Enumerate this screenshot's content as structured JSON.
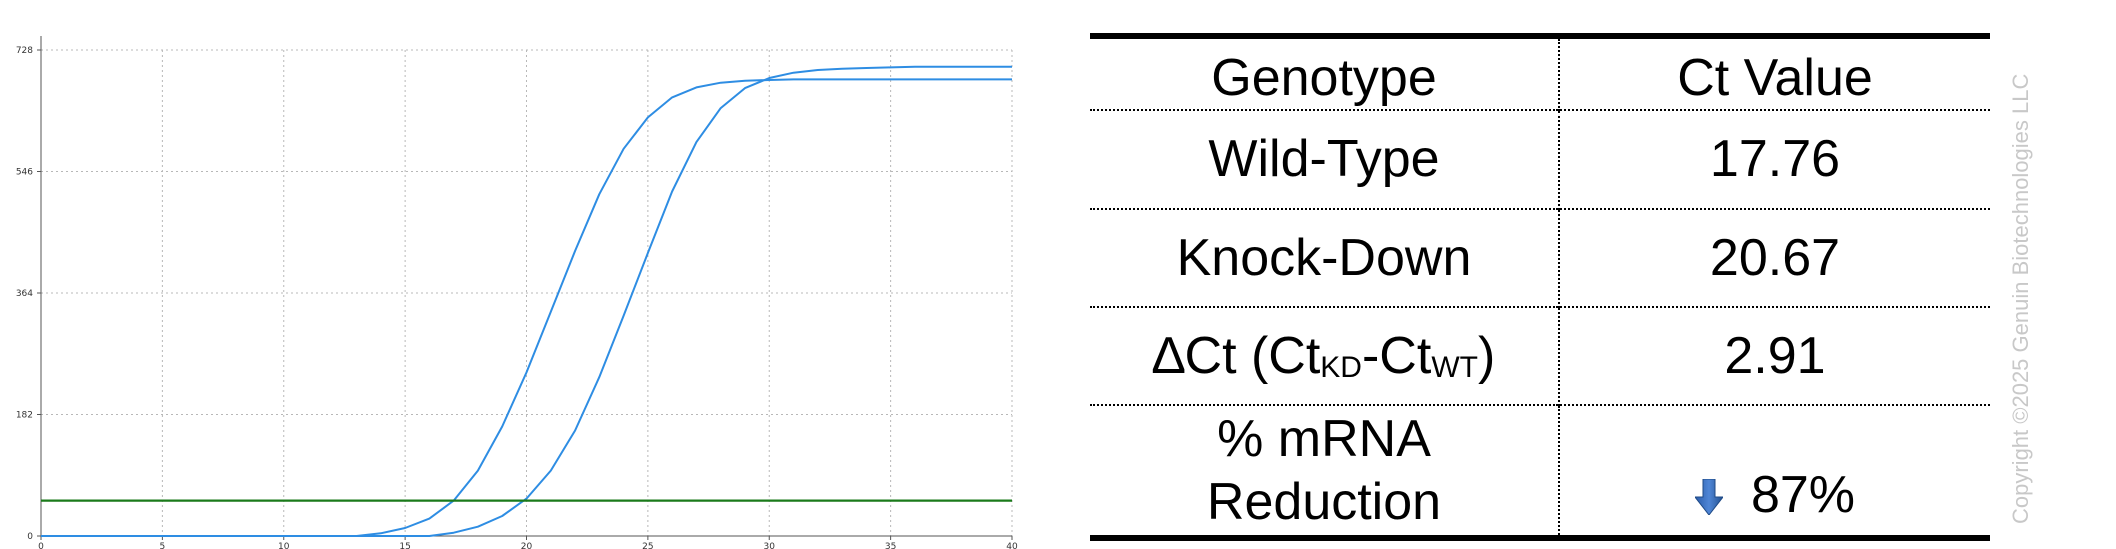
{
  "chart_data": {
    "type": "line",
    "x_ticks": [
      0,
      5,
      10,
      15,
      20,
      25,
      30,
      35,
      40
    ],
    "y_ticks": [
      0,
      182,
      364,
      546,
      728
    ],
    "xlim": [
      0,
      40
    ],
    "ylim": [
      0,
      728
    ],
    "grid": true,
    "colors": {
      "amplification": "#2e8de3",
      "threshold": "#1a7a1a",
      "grid": "#b8b8b8"
    },
    "series": [
      {
        "x": [
          0,
          13,
          14,
          15,
          16,
          17,
          18,
          19,
          20,
          21,
          22,
          23,
          24,
          25,
          26,
          27,
          28,
          29,
          30,
          31,
          32,
          33,
          34,
          35,
          36,
          37,
          38,
          39,
          40
        ],
        "values": [
          0,
          0,
          4,
          12,
          26,
          53,
          98,
          164,
          245,
          336,
          427,
          512,
          580,
          627,
          657,
          672,
          679,
          682,
          683,
          684,
          684,
          684,
          684,
          684,
          684,
          684,
          684,
          684,
          684
        ]
      },
      {
        "x": [
          0,
          16,
          17,
          18,
          19,
          20,
          21,
          22,
          23,
          24,
          25,
          26,
          27,
          28,
          29,
          30,
          31,
          32,
          33,
          34,
          35,
          36,
          37,
          38,
          39,
          40
        ],
        "values": [
          0,
          0,
          5,
          14,
          30,
          56,
          98,
          158,
          238,
          330,
          424,
          516,
          590,
          641,
          671,
          686,
          694,
          698,
          700,
          701,
          702,
          703,
          703,
          703,
          703,
          703
        ]
      },
      {
        "x": [
          0,
          40
        ],
        "values": [
          53,
          53
        ]
      }
    ]
  },
  "table": {
    "header": {
      "genotype": "Genotype",
      "ct_value": "Ct Value"
    },
    "rows": [
      {
        "genotype": "Wild-Type",
        "ct_value": "17.76"
      },
      {
        "genotype": "Knock-Down",
        "ct_value": "20.67"
      },
      {
        "genotype_prefix": "∆Ct (Ct",
        "genotype_sub1": "KD",
        "genotype_mid": "-Ct",
        "genotype_sub2": "WT",
        "genotype_suffix": ")",
        "ct_value": "2.91"
      },
      {
        "genotype_line1": "% mRNA",
        "genotype_line2": "Reduction",
        "ct_value": "87%",
        "icon": "down-arrow-icon"
      }
    ]
  },
  "copyright": "Copyright ©2025 Genuin Biotechnologies LLC"
}
